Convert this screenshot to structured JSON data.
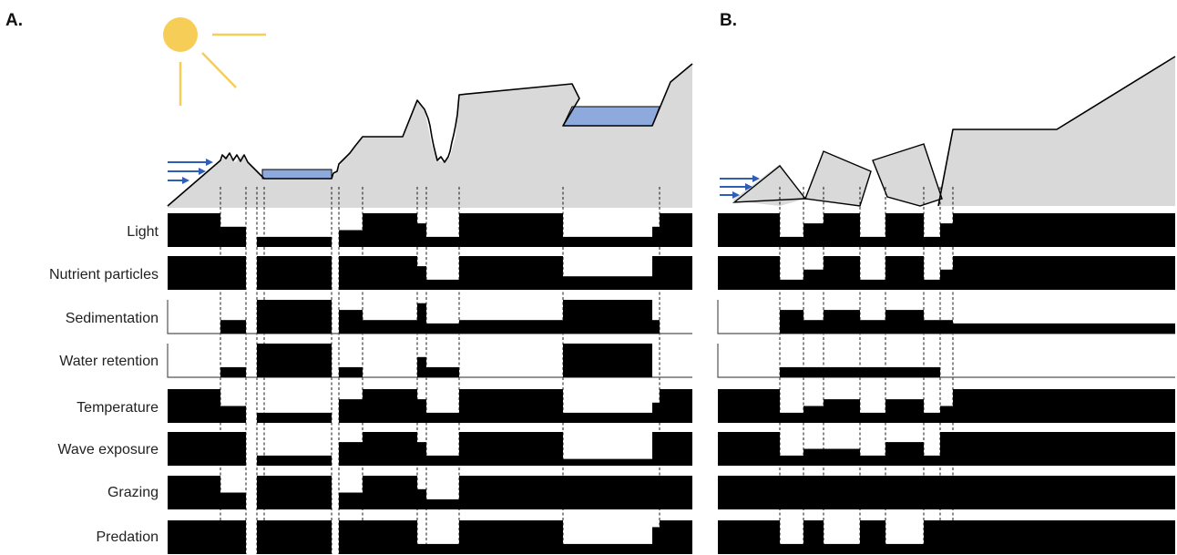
{
  "panels": {
    "a": {
      "letter": "A."
    },
    "b": {
      "letter": "B."
    }
  },
  "rows": [
    {
      "id": "light",
      "label": "Light"
    },
    {
      "id": "nutrient",
      "label": "Nutrient particles"
    },
    {
      "id": "sedimentation",
      "label": "Sedimentation"
    },
    {
      "id": "water_retention",
      "label": "Water retention"
    },
    {
      "id": "temperature",
      "label": "Temperature"
    },
    {
      "id": "wave_exposure",
      "label": "Wave exposure"
    },
    {
      "id": "grazing",
      "label": "Grazing"
    },
    {
      "id": "predation",
      "label": "Predation"
    }
  ],
  "colors": {
    "terrain": "#d9d9d9",
    "water": "#8ea9db",
    "sun": "#f6cd56",
    "arrows": "#2e5eb8",
    "bars": "#000000"
  },
  "icons": {
    "sun": "sun-icon",
    "flow": "wave-arrows-icon"
  },
  "levels": {
    "a": {
      "light": [
        1,
        0.6,
        0.3,
        0.5,
        1,
        0.7,
        0.3,
        1,
        0.3,
        0.6,
        1
      ],
      "nutrient": [
        1,
        1,
        1,
        1,
        1,
        0.7,
        0.3,
        1,
        0.4,
        1,
        1
      ],
      "sedimentation": [
        0,
        0.4,
        1,
        0.7,
        0.4,
        0.9,
        0.3,
        0.4,
        1,
        0.4,
        0
      ],
      "water_retention": [
        0,
        0.3,
        1,
        0.3,
        0,
        0.6,
        0.3,
        0,
        1,
        0,
        0
      ],
      "temperature": [
        1,
        0.5,
        0.3,
        0.7,
        1,
        0.7,
        0.3,
        1,
        0.3,
        0.6,
        1
      ],
      "wave_exposure": [
        1,
        1,
        0.3,
        0.7,
        1,
        0.7,
        0.3,
        1,
        0.2,
        1,
        1
      ],
      "grazing": [
        1,
        0.5,
        1,
        0.5,
        1,
        0.6,
        0.3,
        1,
        1,
        1,
        1
      ],
      "predation": [
        1,
        1,
        1,
        1,
        1,
        0.3,
        0.3,
        1,
        0.3,
        0.8,
        1
      ]
    },
    "b": {
      "light": [
        1,
        0.3,
        0.7,
        1,
        0.3,
        1,
        0.3,
        0.7,
        1
      ],
      "nutrient": [
        1,
        0.3,
        0.6,
        1,
        0.3,
        1,
        0.3,
        0.6,
        1
      ],
      "sedimentation": [
        0,
        0.7,
        0.4,
        0.7,
        0.4,
        0.7,
        0.4,
        0.4,
        0.3
      ],
      "water_retention": [
        0,
        0.3,
        0.3,
        0.3,
        0.3,
        0.3,
        0.3,
        0,
        0
      ],
      "temperature": [
        1,
        0.3,
        0.5,
        0.7,
        0.3,
        0.7,
        0.3,
        0.5,
        1
      ],
      "wave_exposure": [
        1,
        0.3,
        0.5,
        0.5,
        0.3,
        0.7,
        0.3,
        1,
        1
      ],
      "grazing": [
        1,
        1,
        1,
        1,
        1,
        1,
        1,
        1,
        1
      ],
      "predation": [
        1,
        0.3,
        1,
        0.3,
        1,
        0.3,
        1,
        1,
        1
      ]
    }
  }
}
